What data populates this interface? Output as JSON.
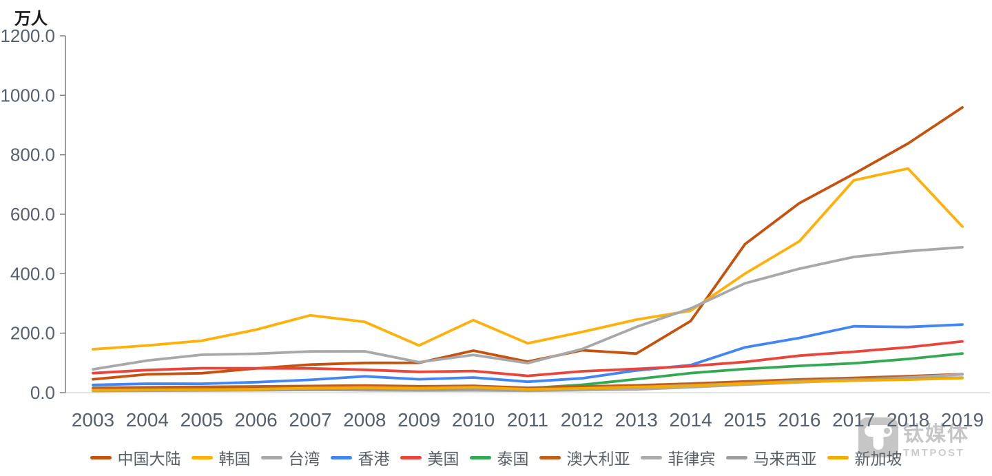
{
  "chart_data": {
    "type": "line",
    "unit_label": "万人",
    "categories": [
      "2003",
      "2004",
      "2005",
      "2006",
      "2007",
      "2008",
      "2009",
      "2010",
      "2011",
      "2012",
      "2013",
      "2014",
      "2015",
      "2016",
      "2017",
      "2018",
      "2019"
    ],
    "series": [
      {
        "name": "中国大陆",
        "color": "#C5520E",
        "values": [
          44.9,
          61.6,
          65.3,
          81.2,
          94.2,
          100.0,
          100.6,
          141.3,
          104.3,
          142.5,
          131.4,
          240.9,
          499.4,
          637.3,
          735.6,
          838.0,
          959.4
        ]
      },
      {
        "name": "韩国",
        "color": "#FFB00A",
        "values": [
          145.9,
          158.8,
          174.7,
          211.7,
          260.1,
          238.2,
          158.7,
          244.0,
          165.8,
          204.2,
          245.6,
          275.5,
          400.2,
          509.0,
          714.0,
          753.9,
          558.5
        ]
      },
      {
        "name": "台湾",
        "color": "#A8A8A8",
        "values": [
          78.5,
          108.0,
          127.5,
          130.9,
          138.5,
          139.0,
          102.4,
          126.8,
          99.4,
          146.6,
          221.1,
          283.0,
          367.7,
          416.7,
          456.4,
          475.7,
          489.1
        ]
      },
      {
        "name": "香港",
        "color": "#4285F4",
        "values": [
          26.0,
          30.0,
          29.9,
          35.2,
          43.2,
          55.0,
          45.0,
          50.9,
          36.5,
          48.2,
          74.6,
          92.6,
          152.4,
          183.9,
          223.2,
          220.8,
          229.1
        ]
      },
      {
        "name": "美国",
        "color": "#E9453A",
        "values": [
          65.6,
          75.9,
          82.2,
          81.7,
          81.6,
          76.8,
          70.0,
          72.7,
          56.6,
          71.7,
          79.9,
          89.2,
          103.3,
          124.3,
          137.5,
          152.6,
          172.4
        ]
      },
      {
        "name": "泰国",
        "color": "#34A853",
        "values": [
          8.0,
          9.4,
          12.0,
          12.9,
          16.7,
          19.2,
          17.8,
          21.5,
          14.5,
          26.1,
          45.3,
          65.8,
          79.7,
          90.1,
          98.7,
          113.2,
          131.9
        ]
      },
      {
        "name": "澳大利亚",
        "color": "#C05E1B",
        "values": [
          15.8,
          17.9,
          19.4,
          20.8,
          22.2,
          24.2,
          21.2,
          22.6,
          16.3,
          20.6,
          24.5,
          30.3,
          37.6,
          44.5,
          49.5,
          55.2,
          62.2
        ]
      },
      {
        "name": "菲律宾",
        "color": "#ABABAB",
        "values": [
          8.0,
          9.0,
          10.0,
          9.2,
          9.9,
          8.2,
          7.1,
          7.7,
          6.3,
          8.5,
          10.8,
          18.4,
          26.8,
          34.8,
          42.4,
          50.4,
          61.3
        ]
      },
      {
        "name": "马来西亚",
        "color": "#9C9C9C",
        "values": [
          5.9,
          6.7,
          7.5,
          8.2,
          9.2,
          8.8,
          7.8,
          11.5,
          8.2,
          13.0,
          17.7,
          25.0,
          30.5,
          39.4,
          44.0,
          46.8,
          50.2
        ]
      },
      {
        "name": "新加坡",
        "color": "#F5AC00",
        "values": [
          7.7,
          8.8,
          9.4,
          11.6,
          15.2,
          16.8,
          14.5,
          18.1,
          11.1,
          14.2,
          18.9,
          22.8,
          30.9,
          36.2,
          40.4,
          43.7,
          49.2
        ]
      }
    ],
    "ylim": [
      0,
      1200
    ],
    "y_ticks": [
      "1200.0",
      "1000.0",
      "800.0",
      "600.0",
      "400.0",
      "200.0",
      "0.0"
    ],
    "xlabel": "",
    "ylabel": "万人",
    "grid": false,
    "legend_position": "bottom"
  },
  "watermark": {
    "name_cn": "钛媒体",
    "name_en": "TMTPOST"
  }
}
